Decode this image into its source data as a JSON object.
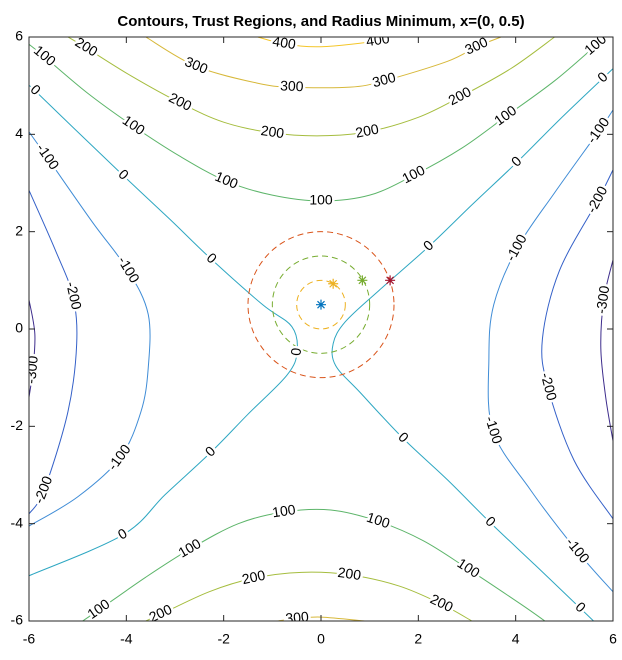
{
  "chart_data": {
    "type": "contour",
    "title": "Contours, Trust Regions, and Radius Minimum, x=(0, 0.5)",
    "xlim": [
      -6,
      6
    ],
    "ylim": [
      -6,
      6
    ],
    "xticks": [
      -6,
      -4,
      -2,
      0,
      2,
      4,
      6
    ],
    "yticks": [
      -6,
      -4,
      -2,
      0,
      2,
      4,
      6
    ],
    "contours": [
      {
        "level": 400,
        "color": "#f4c62a",
        "x": [
          -1.3,
          -0.76,
          0,
          1.17,
          1.35
        ],
        "y": [
          6,
          5.86,
          5.8,
          5.92,
          6
        ]
      },
      {
        "level": 300,
        "color": "#d7b83a",
        "x": [
          -3.6,
          -2.57,
          -1.3,
          -0.6,
          0.6,
          1.3,
          2.6,
          3.2,
          3.7
        ],
        "y": [
          6,
          5.4,
          5.05,
          4.97,
          4.97,
          5.1,
          5.5,
          5.8,
          6
        ]
      },
      {
        "level": 200,
        "color": "#a5bd3e",
        "x": [
          -5.2,
          -4.83,
          -3.9,
          -2.9,
          -2,
          -1,
          0,
          0.95,
          2,
          2.86,
          3.9,
          4.8
        ],
        "y": [
          6,
          5.78,
          5.2,
          4.65,
          4.25,
          4.03,
          3.97,
          4.05,
          4.35,
          4.77,
          5.35,
          6
        ]
      },
      {
        "level": 100,
        "color": "#5db56a",
        "x": [
          -6,
          -5.69,
          -4.8,
          -3.86,
          -2.9,
          -1.95,
          -1,
          0,
          1,
          1.91,
          2.9,
          3.8,
          4.8,
          5.65,
          5.85
        ],
        "y": [
          5.85,
          5.6,
          4.85,
          4.17,
          3.55,
          3.04,
          2.75,
          2.63,
          2.75,
          3.16,
          3.72,
          4.37,
          5.1,
          5.83,
          6
        ]
      },
      {
        "level": 0,
        "color": "#2ea7c2",
        "x": [
          -6,
          -5.88,
          -5,
          -4.07,
          -3.1,
          -2.26,
          -1.2,
          -0.6,
          -0.49,
          -0.7,
          -1.5,
          -2.26,
          -3.2,
          -4.07,
          -6
        ],
        "y": [
          5,
          4.9,
          4.05,
          3.16,
          2.25,
          1.44,
          0.5,
          0.05,
          -0.47,
          -0.95,
          -1.75,
          -2.53,
          -3.4,
          -4.23,
          -5.07
        ]
      },
      {
        "level": 0,
        "color": "#2ea7c2",
        "x": [
          6,
          5.8,
          4.9,
          4.03,
          3.1,
          2.22,
          1.2,
          0.5,
          0.25,
          0.3,
          0.8,
          1.68,
          2.6,
          3.47,
          4.4,
          5.32,
          5.6
        ],
        "y": [
          5.35,
          5.16,
          4.3,
          3.43,
          2.55,
          1.7,
          0.8,
          0.15,
          -0.3,
          -0.75,
          -1.3,
          -2.24,
          -3.1,
          -3.97,
          -4.85,
          -5.73,
          -6
        ]
      },
      {
        "level": 100,
        "color": "#5db56a",
        "x": [
          -4.9,
          -4.56,
          -3.6,
          -2.69,
          -1.7,
          -0.76,
          0.2,
          1.17,
          2.1,
          3.02,
          4.1,
          4.6
        ],
        "y": [
          -6,
          -5.77,
          -5.1,
          -4.52,
          -4,
          -3.76,
          -3.72,
          -3.95,
          -4.35,
          -4.93,
          -5.65,
          -6
        ]
      },
      {
        "level": 200,
        "color": "#a5bd3e",
        "x": [
          -3.6,
          -3.29,
          -2.3,
          -1.38,
          -0.4,
          0.58,
          1.6,
          2.47,
          3.1
        ],
        "y": [
          -6,
          -5.86,
          -5.4,
          -5.12,
          -5,
          -5.05,
          -5.28,
          -5.65,
          -6
        ]
      },
      {
        "level": 300,
        "color": "#d7b83a",
        "x": [
          -0.9,
          -0.49,
          0,
          0.9
        ],
        "y": [
          -6,
          -5.95,
          -5.92,
          -6
        ]
      },
      {
        "level": -100,
        "color": "#3f8cd6",
        "x": [
          -6,
          -5.63,
          -4.7,
          -3.97,
          -3.55,
          -3.55,
          -3.7,
          -4.13,
          -5,
          -6
        ],
        "y": [
          4.05,
          3.53,
          2.2,
          1.21,
          0.3,
          -0.8,
          -1.7,
          -2.65,
          -3.45,
          -4.05
        ]
      },
      {
        "level": -200,
        "color": "#3460c8",
        "x": [
          -6,
          -5.45,
          -5.1,
          -5.02,
          -5.2,
          -5.69,
          -6
        ],
        "y": [
          2.85,
          1.6,
          0.68,
          -0.3,
          -1.7,
          -3.31,
          -3.8
        ]
      },
      {
        "level": -300,
        "color": "#3d2c8c",
        "x": [
          -6,
          -5.88,
          -5.92,
          -6
        ],
        "y": [
          0.6,
          -0.1,
          -0.84,
          -1.4
        ]
      },
      {
        "level": -100,
        "color": "#3f8cd6",
        "x": [
          6,
          5.71,
          4.8,
          4.03,
          3.55,
          3.45,
          3.53,
          4.3,
          5.26,
          6
        ],
        "y": [
          4.5,
          4.07,
          2.8,
          1.66,
          0.5,
          -0.6,
          -2.08,
          -3.3,
          -4.56,
          -5.4
        ]
      },
      {
        "level": -200,
        "color": "#3460c8",
        "x": [
          6,
          5.69,
          4.9,
          4.55,
          4.66,
          5.2,
          6
        ],
        "y": [
          3.27,
          2.65,
          1.2,
          -0.2,
          -1.19,
          -2.7,
          -3.9
        ]
      },
      {
        "level": -300,
        "color": "#3d2c8c",
        "x": [
          6,
          5.81,
          5.75,
          5.85,
          6
        ],
        "y": [
          1.42,
          0.6,
          -0.4,
          -1.4,
          -2.3
        ]
      }
    ],
    "circles": [
      {
        "color": "#edb120",
        "cx": 0,
        "cy": 0.5,
        "r": 0.5
      },
      {
        "color": "#77ac30",
        "cx": 0,
        "cy": 0.5,
        "r": 1
      },
      {
        "color": "#d95319",
        "cx": 0,
        "cy": 0.5,
        "r": 1.5
      }
    ],
    "points": [
      {
        "color": "#0072bd",
        "x": 0,
        "y": 0.5
      },
      {
        "color": "#edb120",
        "x": 0.25,
        "y": 0.93
      },
      {
        "color": "#77ac30",
        "x": 0.85,
        "y": 1
      },
      {
        "color": "#a2142f",
        "x": 1.42,
        "y": 1
      }
    ]
  }
}
